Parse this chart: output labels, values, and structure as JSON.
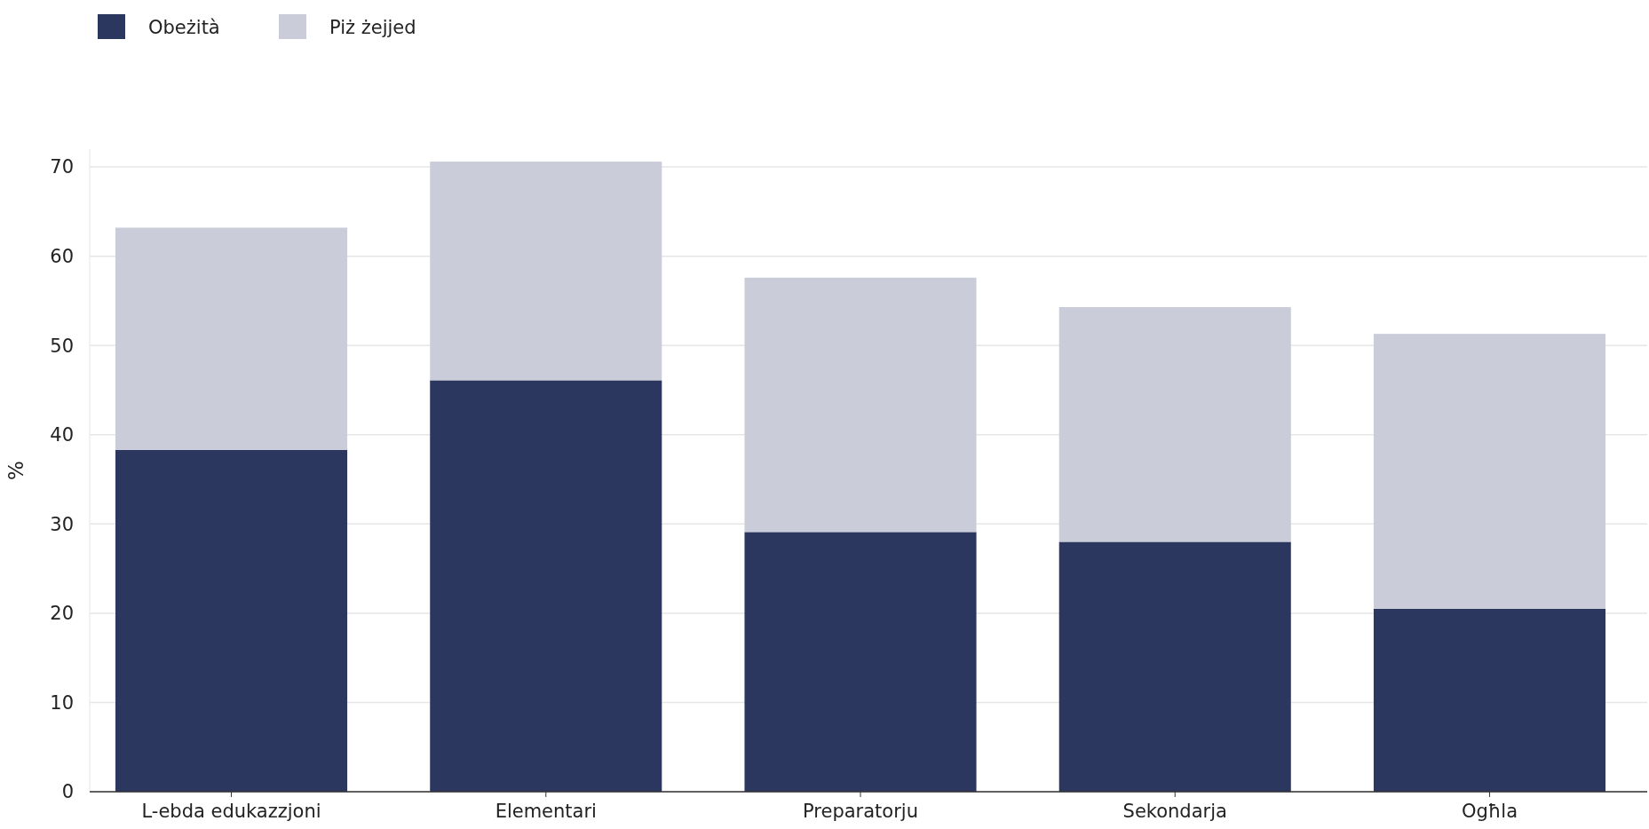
{
  "chart_data": {
    "type": "bar",
    "stacked": true,
    "ylabel": "%",
    "categories": [
      "L-ebda edukazzjoni",
      "Elementari",
      "Preparatorju",
      "Sekondarja",
      "Ogħla"
    ],
    "series": [
      {
        "name": "Obeżità",
        "color": "#2b375f",
        "values": [
          38.3,
          46.1,
          29.1,
          28.0,
          20.5
        ]
      },
      {
        "name": "Piż żejjed",
        "color": "#cacdd9",
        "values": [
          24.9,
          24.5,
          28.5,
          26.3,
          30.8
        ]
      }
    ],
    "ylim": [
      0,
      72
    ],
    "yticks": [
      0,
      10,
      20,
      30,
      40,
      50,
      60,
      70
    ],
    "grid": "y",
    "legend": "top left"
  }
}
